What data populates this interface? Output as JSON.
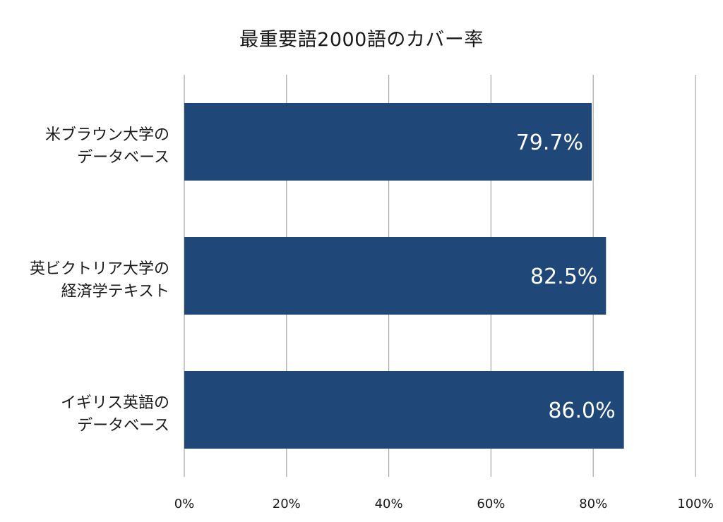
{
  "chart_data": {
    "type": "bar",
    "orientation": "horizontal",
    "title": "最重要語2000語のカバー率",
    "categories": [
      [
        "米ブラウン大学の",
        "データベース"
      ],
      [
        "英ビクトリア大学の",
        "経済学テキスト"
      ],
      [
        "イギリス英語の",
        "データベース"
      ]
    ],
    "values": [
      79.7,
      82.5,
      86.0
    ],
    "data_labels": [
      "79.7%",
      "82.5%",
      "86.0%"
    ],
    "xlim": [
      0,
      100
    ],
    "x_ticks": [
      "0%",
      "20%",
      "40%",
      "60%",
      "80%",
      "100%"
    ],
    "grid": true,
    "bar_color": "#1f4878",
    "grid_color": "#a6a6a6",
    "xlabel": "",
    "ylabel": ""
  }
}
